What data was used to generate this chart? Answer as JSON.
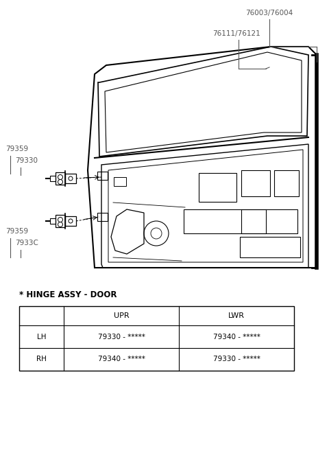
{
  "bg_color": "#ffffff",
  "part_labels": {
    "76003_76004": "76003/76004",
    "76111_76121": "76111/76121",
    "79359_upper": "79359",
    "79330_upper": "79330",
    "79359_lower": "79359",
    "7933C": "7933C"
  },
  "table_title": "* HINGE ASSY - DOOR",
  "table_headers": [
    "",
    "UPR",
    "LWR"
  ],
  "table_rows": [
    [
      "LH",
      "79330 - *****",
      "79340 - *****"
    ],
    [
      "RH",
      "79340 - *****",
      "79330 - *****"
    ]
  ],
  "label_color": "#555555",
  "line_color": "#000000",
  "door_color": "#000000"
}
